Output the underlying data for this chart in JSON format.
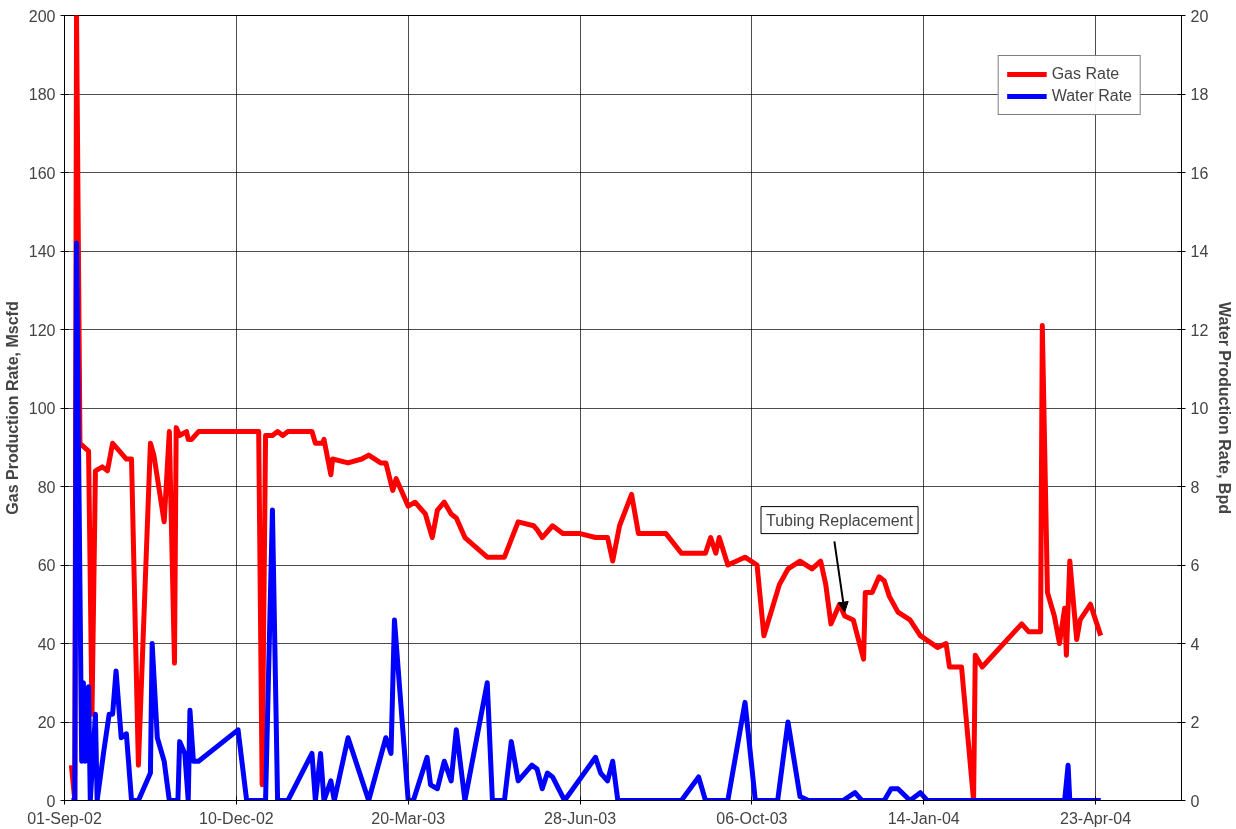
{
  "chart_data": {
    "type": "line",
    "xlabel": null,
    "ylabel": "Gas Production Rate, Mscfd",
    "y2label": "Water Production Rate, Bpd",
    "xlim": [
      "2002-09-01",
      "2004-06-12"
    ],
    "xticks": [
      {
        "value": "2002-09-01",
        "label": "01-Sep-02"
      },
      {
        "value": "2002-12-10",
        "label": "10-Dec-02"
      },
      {
        "value": "2003-03-20",
        "label": "20-Mar-03"
      },
      {
        "value": "2003-06-28",
        "label": "28-Jun-03"
      },
      {
        "value": "2003-10-06",
        "label": "06-Oct-03"
      },
      {
        "value": "2004-01-14",
        "label": "14-Jan-04"
      },
      {
        "value": "2004-04-23",
        "label": "23-Apr-04"
      }
    ],
    "ylim": [
      0,
      200
    ],
    "yticks": [
      0,
      20,
      40,
      60,
      80,
      100,
      120,
      140,
      160,
      180,
      200
    ],
    "y2lim": [
      0,
      20
    ],
    "y2ticks": [
      0,
      2,
      4,
      6,
      8,
      10,
      12,
      14,
      16,
      18,
      20
    ],
    "grid": true,
    "legend": "top right",
    "line_style": "solid",
    "marker": "none",
    "annotations": [
      {
        "text": "Tubing Replacement",
        "x": "2003-11-29",
        "y": 47
      }
    ],
    "series": [
      {
        "name": "Gas Rate",
        "color": "#ff0000",
        "x": [
          "2002-09-05",
          "2002-09-07",
          "2002-09-08",
          "2002-09-10",
          "2002-09-15",
          "2002-09-17",
          "2002-09-19",
          "2002-09-23",
          "2002-09-26",
          "2002-09-29",
          "2002-10-03",
          "2002-10-07",
          "2002-10-10",
          "2002-10-14",
          "2002-10-21",
          "2002-10-23",
          "2002-10-29",
          "2002-11-01",
          "2002-11-04",
          "2002-11-05",
          "2002-11-07",
          "2002-11-11",
          "2002-11-12",
          "2002-11-14",
          "2002-11-18",
          "2002-12-23",
          "2002-12-25",
          "2002-12-27",
          "2002-12-31",
          "2003-01-03",
          "2003-01-06",
          "2003-01-09",
          "2003-01-23",
          "2003-01-25",
          "2003-01-29",
          "2003-01-30",
          "2003-02-03",
          "2003-02-04",
          "2003-02-13",
          "2003-02-21",
          "2003-02-25",
          "2003-03-04",
          "2003-03-07",
          "2003-03-11",
          "2003-03-13",
          "2003-03-20",
          "2003-03-24",
          "2003-03-30",
          "2003-04-03",
          "2003-04-06",
          "2003-04-10",
          "2003-04-14",
          "2003-04-17",
          "2003-04-22",
          "2003-05-05",
          "2003-05-15",
          "2003-05-23",
          "2003-06-01",
          "2003-06-03",
          "2003-06-06",
          "2003-06-12",
          "2003-06-18",
          "2003-06-28",
          "2003-07-07",
          "2003-07-14",
          "2003-07-17",
          "2003-07-21",
          "2003-07-28",
          "2003-08-01",
          "2003-08-17",
          "2003-08-26",
          "2003-09-09",
          "2003-09-12",
          "2003-09-15",
          "2003-09-17",
          "2003-09-22",
          "2003-10-02",
          "2003-10-09",
          "2003-10-13",
          "2003-10-22",
          "2003-10-27",
          "2003-11-03",
          "2003-11-10",
          "2003-11-15",
          "2003-11-18",
          "2003-11-21",
          "2003-11-26",
          "2003-11-29",
          "2003-12-04",
          "2003-12-10",
          "2003-12-11",
          "2003-12-15",
          "2003-12-19",
          "2003-12-22",
          "2003-12-25",
          "2003-12-30",
          "2004-01-06",
          "2004-01-12",
          "2004-01-22",
          "2004-01-27",
          "2004-01-29",
          "2004-02-05",
          "2004-02-12",
          "2004-02-13",
          "2004-02-17",
          "2004-03-11",
          "2004-03-15",
          "2004-03-22",
          "2004-03-23",
          "2004-03-26",
          "2004-03-30",
          "2004-04-02",
          "2004-04-05",
          "2004-04-06",
          "2004-04-08",
          "2004-04-12",
          "2004-04-14",
          "2004-04-20",
          "2004-04-26"
        ],
        "values": [
          9,
          0,
          200,
          91,
          89,
          22,
          84,
          85,
          84,
          91,
          89,
          87,
          87,
          9,
          91,
          88,
          71,
          94,
          35,
          95,
          93,
          94,
          92,
          92,
          94,
          94,
          4,
          93,
          93,
          94,
          93,
          94,
          94,
          91,
          91,
          92,
          83,
          87,
          86,
          87,
          88,
          86,
          86,
          79,
          82,
          75,
          76,
          73,
          67,
          74,
          76,
          73,
          72,
          67,
          62,
          62,
          71,
          70,
          69,
          67,
          70,
          68,
          68,
          67,
          67,
          61,
          70,
          78,
          68,
          68,
          63,
          63,
          67,
          63,
          67,
          60,
          62,
          60,
          42,
          55,
          59,
          61,
          59,
          61,
          55,
          45,
          50,
          47,
          46,
          36,
          53,
          53,
          57,
          56,
          52,
          48,
          46,
          42,
          39,
          40,
          34,
          34,
          0,
          37,
          34,
          45,
          43,
          43,
          121,
          53,
          47,
          40,
          49,
          37,
          61,
          41,
          46,
          50,
          42
        ]
      },
      {
        "name": "Water Rate",
        "color": "#0000ff",
        "axis": "y2",
        "x": [
          "2002-09-05",
          "2002-09-07",
          "2002-09-08",
          "2002-09-11",
          "2002-09-12",
          "2002-09-13",
          "2002-09-15",
          "2002-09-16",
          "2002-09-19",
          "2002-09-20",
          "2002-09-24",
          "2002-09-27",
          "2002-09-29",
          "2002-10-01",
          "2002-10-04",
          "2002-10-07",
          "2002-10-10",
          "2002-10-14",
          "2002-10-21",
          "2002-10-22",
          "2002-10-25",
          "2002-10-29",
          "2002-11-01",
          "2002-11-06",
          "2002-11-07",
          "2002-11-10",
          "2002-11-12",
          "2002-11-13",
          "2002-11-15",
          "2002-11-18",
          "2002-12-11",
          "2002-12-16",
          "2002-12-27",
          "2002-12-31",
          "2003-01-03",
          "2003-01-09",
          "2003-01-23",
          "2003-01-25",
          "2003-01-28",
          "2003-01-30",
          "2003-02-03",
          "2003-02-05",
          "2003-02-13",
          "2003-02-25",
          "2003-03-07",
          "2003-03-10",
          "2003-03-12",
          "2003-03-20",
          "2003-03-23",
          "2003-03-31",
          "2003-04-02",
          "2003-04-06",
          "2003-04-10",
          "2003-04-14",
          "2003-04-17",
          "2003-04-22",
          "2003-05-05",
          "2003-05-08",
          "2003-05-15",
          "2003-05-19",
          "2003-05-23",
          "2003-05-31",
          "2003-06-03",
          "2003-06-06",
          "2003-06-09",
          "2003-06-12",
          "2003-06-19",
          "2003-07-07",
          "2003-07-10",
          "2003-07-14",
          "2003-07-17",
          "2003-07-20",
          "2003-08-26",
          "2003-09-05",
          "2003-09-09",
          "2003-09-22",
          "2003-10-02",
          "2003-10-08",
          "2003-10-21",
          "2003-10-27",
          "2003-11-03",
          "2003-11-08",
          "2003-11-28",
          "2003-12-05",
          "2003-12-09",
          "2003-12-22",
          "2003-12-26",
          "2003-12-30",
          "2004-01-06",
          "2004-01-12",
          "2004-01-16",
          "2004-04-05",
          "2004-04-07",
          "2004-04-08",
          "2004-04-26"
        ],
        "values": [
          0,
          0,
          14.2,
          1.0,
          3.0,
          1.0,
          2.9,
          0,
          2.2,
          0,
          1.3,
          2.2,
          2.2,
          3.3,
          1.6,
          1.7,
          0,
          0,
          0.7,
          4.0,
          1.6,
          1.0,
          0,
          0,
          1.5,
          1.2,
          0,
          2.3,
          1.0,
          1.0,
          1.8,
          0,
          0,
          7.4,
          0,
          0,
          1.2,
          0,
          1.2,
          0,
          0.5,
          0,
          1.6,
          0,
          1.6,
          1.2,
          4.6,
          0,
          0,
          1.1,
          0.4,
          0.3,
          1.0,
          0.5,
          1.8,
          0,
          3.0,
          0,
          0,
          1.5,
          0.5,
          0.9,
          0.8,
          0.3,
          0.7,
          0.6,
          0,
          1.1,
          0.7,
          0.5,
          1.0,
          0,
          0,
          0.6,
          0,
          0,
          2.5,
          0,
          0,
          2.0,
          0.1,
          0,
          0,
          0.2,
          0,
          0,
          0.3,
          0.3,
          0,
          0.2,
          0,
          0,
          0.9,
          0,
          0
        ]
      }
    ]
  }
}
